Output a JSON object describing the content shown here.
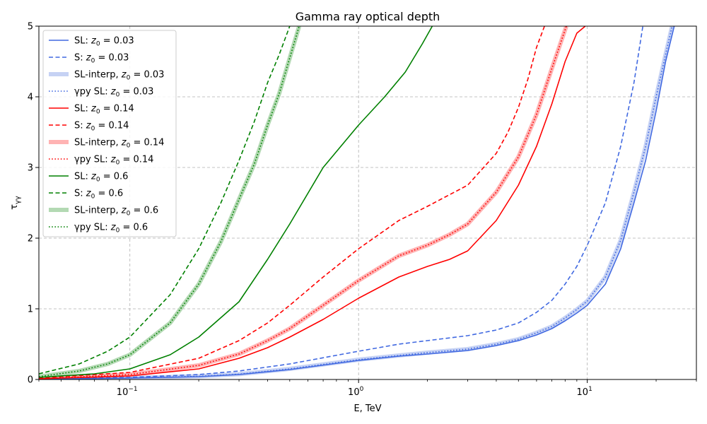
{
  "chart_data": {
    "type": "line",
    "title": "Gamma ray optical depth",
    "xlabel": "E, TeV",
    "ylabel": "τγγ",
    "xscale": "log",
    "xlim": [
      0.04,
      30
    ],
    "ylim": [
      0,
      5
    ],
    "grid": true,
    "legend_position": "upper-left",
    "x_ticks": [
      {
        "value": 0.1,
        "label": "10",
        "exp": "−1"
      },
      {
        "value": 1,
        "label": "10",
        "exp": "0"
      },
      {
        "value": 10,
        "label": "10",
        "exp": "1"
      }
    ],
    "y_ticks": [
      {
        "value": 0,
        "label": "0"
      },
      {
        "value": 1,
        "label": "1"
      },
      {
        "value": 2,
        "label": "2"
      },
      {
        "value": 3,
        "label": "3"
      },
      {
        "value": 4,
        "label": "4"
      },
      {
        "value": 5,
        "label": "5"
      }
    ],
    "colors": {
      "blue": "#4169e1",
      "red": "#ff0000",
      "green": "#008000"
    },
    "series": [
      {
        "name": "SL: z0 = 0.03",
        "label_prefix": "SL: ",
        "label_suffix": " = 0.03",
        "color": "#4169e1",
        "style": "solid",
        "x": [
          0.04,
          0.1,
          0.2,
          0.3,
          0.5,
          1,
          1.5,
          2,
          3,
          4,
          5,
          6,
          7,
          8,
          9,
          10,
          12,
          14,
          16,
          18,
          20,
          22,
          24
        ],
        "y": [
          0.005,
          0.02,
          0.04,
          0.07,
          0.14,
          0.27,
          0.33,
          0.36,
          0.41,
          0.48,
          0.55,
          0.63,
          0.72,
          0.83,
          0.94,
          1.05,
          1.35,
          1.85,
          2.5,
          3.1,
          3.8,
          4.5,
          5.0
        ]
      },
      {
        "name": "S: z0 = 0.03",
        "label_prefix": "S: ",
        "label_suffix": " = 0.03",
        "color": "#4169e1",
        "style": "dashed",
        "x": [
          0.04,
          0.1,
          0.2,
          0.3,
          0.5,
          1,
          1.5,
          2,
          3,
          4,
          5,
          6,
          7,
          8,
          9,
          10,
          12,
          14,
          16,
          17.5
        ],
        "y": [
          0.01,
          0.03,
          0.07,
          0.12,
          0.22,
          0.4,
          0.5,
          0.55,
          0.62,
          0.7,
          0.8,
          0.95,
          1.12,
          1.35,
          1.6,
          1.9,
          2.5,
          3.3,
          4.2,
          5.0
        ]
      },
      {
        "name": "SL-interp, z0 = 0.03",
        "label_prefix": "SL-interp, ",
        "label_suffix": " = 0.03",
        "color": "#c6d2f4",
        "style": "thick",
        "x": [
          0.04,
          0.1,
          0.2,
          0.3,
          0.5,
          1,
          1.5,
          2,
          3,
          4,
          5,
          6,
          7,
          8,
          9,
          10,
          12,
          14,
          16,
          18,
          20,
          22,
          23.5
        ],
        "y": [
          0.006,
          0.022,
          0.045,
          0.075,
          0.15,
          0.28,
          0.34,
          0.38,
          0.43,
          0.5,
          0.57,
          0.66,
          0.75,
          0.87,
          0.99,
          1.11,
          1.45,
          1.97,
          2.65,
          3.3,
          4.0,
          4.6,
          5.0
        ]
      },
      {
        "name": "γpy SL: z0 = 0.03",
        "label_prefix": "γpy SL: ",
        "label_suffix": " = 0.03",
        "color": "#4169e1",
        "style": "dotted",
        "x": [
          0.04,
          0.1,
          0.2,
          0.3,
          0.5,
          1,
          1.5,
          2,
          3,
          4,
          5,
          6,
          7,
          8,
          9,
          10,
          12,
          14,
          16,
          18,
          20,
          22,
          23.5
        ],
        "y": [
          0.006,
          0.022,
          0.045,
          0.075,
          0.15,
          0.28,
          0.34,
          0.38,
          0.43,
          0.5,
          0.57,
          0.66,
          0.75,
          0.87,
          0.99,
          1.11,
          1.45,
          1.97,
          2.65,
          3.3,
          4.0,
          4.6,
          5.0
        ]
      },
      {
        "name": "SL: z0 = 0.14",
        "label_prefix": "SL: ",
        "label_suffix": " = 0.14",
        "color": "#ff0000",
        "style": "solid",
        "x": [
          0.04,
          0.1,
          0.2,
          0.3,
          0.4,
          0.5,
          0.7,
          1,
          1.5,
          2,
          2.5,
          3,
          4,
          5,
          6,
          7,
          8,
          9,
          9.8
        ],
        "y": [
          0.01,
          0.05,
          0.15,
          0.3,
          0.45,
          0.6,
          0.85,
          1.15,
          1.45,
          1.6,
          1.7,
          1.82,
          2.25,
          2.75,
          3.3,
          3.9,
          4.5,
          4.9,
          5.0
        ]
      },
      {
        "name": "S: z0 = 0.14",
        "label_prefix": "S: ",
        "label_suffix": " = 0.14",
        "color": "#ff0000",
        "style": "dashed",
        "x": [
          0.04,
          0.1,
          0.2,
          0.3,
          0.4,
          0.5,
          0.7,
          1,
          1.5,
          2,
          3,
          4,
          4.5,
          5,
          5.5,
          6,
          6.5
        ],
        "y": [
          0.02,
          0.1,
          0.3,
          0.55,
          0.8,
          1.05,
          1.45,
          1.85,
          2.25,
          2.45,
          2.75,
          3.2,
          3.5,
          3.85,
          4.25,
          4.7,
          5.0
        ]
      },
      {
        "name": "SL-interp, z0 = 0.14",
        "label_prefix": "SL-interp, ",
        "label_suffix": " = 0.14",
        "color": "#ffb3b3",
        "style": "thick",
        "x": [
          0.04,
          0.1,
          0.2,
          0.3,
          0.4,
          0.5,
          0.7,
          1,
          1.5,
          2,
          2.5,
          3,
          4,
          5,
          6,
          7,
          8.1
        ],
        "y": [
          0.01,
          0.07,
          0.2,
          0.36,
          0.55,
          0.72,
          1.05,
          1.4,
          1.75,
          1.9,
          2.05,
          2.2,
          2.65,
          3.15,
          3.75,
          4.4,
          5.0
        ]
      },
      {
        "name": "γpy SL: z0 = 0.14",
        "label_prefix": "γpy SL: ",
        "label_suffix": " = 0.14",
        "color": "#ff0000",
        "style": "dotted",
        "x": [
          0.04,
          0.1,
          0.2,
          0.3,
          0.4,
          0.5,
          0.7,
          1,
          1.5,
          2,
          2.5,
          3,
          4,
          5,
          6,
          7,
          8.1
        ],
        "y": [
          0.01,
          0.07,
          0.2,
          0.36,
          0.55,
          0.72,
          1.05,
          1.4,
          1.75,
          1.9,
          2.05,
          2.2,
          2.65,
          3.15,
          3.75,
          4.4,
          5.0
        ]
      },
      {
        "name": "SL: z0 = 0.6",
        "label_prefix": "SL: ",
        "label_suffix": " = 0.6",
        "color": "#008000",
        "style": "solid",
        "x": [
          0.04,
          0.07,
          0.1,
          0.15,
          0.2,
          0.3,
          0.4,
          0.5,
          0.7,
          1,
          1.3,
          1.6,
          1.9,
          2.1
        ],
        "y": [
          0.03,
          0.08,
          0.15,
          0.35,
          0.6,
          1.1,
          1.7,
          2.2,
          3.0,
          3.6,
          4.0,
          4.35,
          4.75,
          5.0
        ]
      },
      {
        "name": "S: z0 = 0.6",
        "label_prefix": "S: ",
        "label_suffix": " = 0.6",
        "color": "#008000",
        "style": "dashed",
        "x": [
          0.04,
          0.06,
          0.08,
          0.1,
          0.15,
          0.2,
          0.25,
          0.3,
          0.35,
          0.4,
          0.45,
          0.5
        ],
        "y": [
          0.08,
          0.22,
          0.4,
          0.6,
          1.2,
          1.85,
          2.5,
          3.1,
          3.65,
          4.2,
          4.6,
          5.0
        ]
      },
      {
        "name": "SL-interp, z0 = 0.6",
        "label_prefix": "SL-interp, ",
        "label_suffix": " = 0.6",
        "color": "#b3d9b3",
        "style": "thick",
        "x": [
          0.04,
          0.06,
          0.08,
          0.1,
          0.15,
          0.2,
          0.25,
          0.3,
          0.35,
          0.4,
          0.45,
          0.5,
          0.55
        ],
        "y": [
          0.04,
          0.12,
          0.22,
          0.35,
          0.8,
          1.35,
          1.95,
          2.55,
          3.05,
          3.6,
          4.05,
          4.55,
          5.0
        ]
      },
      {
        "name": "γpy SL: z0 = 0.6",
        "label_prefix": "γpy SL: ",
        "label_suffix": " = 0.6",
        "color": "#008000",
        "style": "dotted",
        "x": [
          0.04,
          0.06,
          0.08,
          0.1,
          0.15,
          0.2,
          0.25,
          0.3,
          0.35,
          0.4,
          0.45,
          0.5,
          0.55
        ],
        "y": [
          0.04,
          0.12,
          0.22,
          0.35,
          0.8,
          1.35,
          1.95,
          2.55,
          3.05,
          3.6,
          4.05,
          4.55,
          5.0
        ]
      }
    ]
  }
}
